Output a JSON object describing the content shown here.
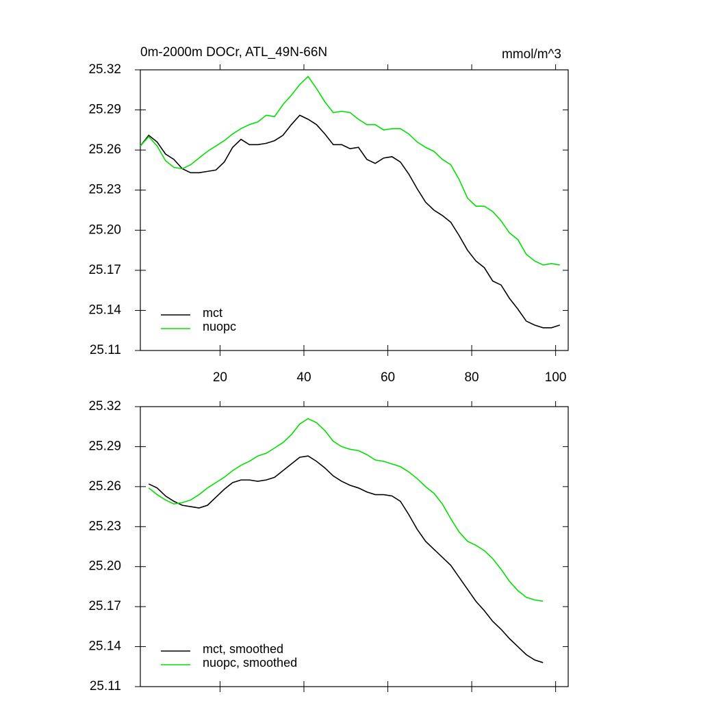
{
  "chart_data": [
    {
      "type": "line",
      "title": "0m-2000m DOCr, ATL_49N-66N",
      "units": "mmol/m^3",
      "x": [
        1,
        3,
        5,
        7,
        9,
        11,
        13,
        15,
        17,
        19,
        21,
        23,
        25,
        27,
        29,
        31,
        33,
        35,
        37,
        39,
        41,
        43,
        45,
        47,
        49,
        51,
        53,
        55,
        57,
        59,
        61,
        63,
        65,
        67,
        69,
        71,
        73,
        75,
        77,
        79,
        81,
        83,
        85,
        87,
        89,
        91,
        93,
        95,
        97,
        99,
        101
      ],
      "series": [
        {
          "name": "mct",
          "color": "#000000",
          "values": [
            25.263,
            25.271,
            25.266,
            25.257,
            25.253,
            25.246,
            25.243,
            25.243,
            25.244,
            25.245,
            25.251,
            25.262,
            25.268,
            25.264,
            25.264,
            25.265,
            25.267,
            25.271,
            25.279,
            25.286,
            25.283,
            25.279,
            25.272,
            25.264,
            25.264,
            25.261,
            25.262,
            25.253,
            25.25,
            25.254,
            25.255,
            25.251,
            25.242,
            25.231,
            25.221,
            25.215,
            25.211,
            25.206,
            25.196,
            25.185,
            25.177,
            25.172,
            25.162,
            25.159,
            25.149,
            25.141,
            25.132,
            25.129,
            25.127,
            25.127,
            25.129
          ]
        },
        {
          "name": "nuopc",
          "color": "#00e000",
          "values": [
            25.263,
            25.27,
            25.263,
            25.252,
            25.247,
            25.246,
            25.249,
            25.254,
            25.259,
            25.263,
            25.267,
            25.272,
            25.276,
            25.279,
            25.281,
            25.286,
            25.285,
            25.294,
            25.301,
            25.309,
            25.315,
            25.306,
            25.296,
            25.288,
            25.289,
            25.288,
            25.283,
            25.279,
            25.279,
            25.275,
            25.276,
            25.276,
            25.272,
            25.266,
            25.262,
            25.259,
            25.253,
            25.249,
            25.238,
            25.224,
            25.218,
            25.218,
            25.214,
            25.207,
            25.198,
            25.193,
            25.182,
            25.177,
            25.174,
            25.175,
            25.174
          ]
        }
      ],
      "xlim": [
        1,
        103
      ],
      "xticks": [
        20,
        40,
        60,
        80,
        100
      ],
      "xtick_labels": true,
      "ylim": [
        25.11,
        25.32
      ],
      "yticks": [
        25.11,
        25.14,
        25.17,
        {
          "value": 25.2,
          "label": "25.20"
        },
        25.23,
        25.26,
        25.29,
        25.32
      ],
      "legend": "lower left"
    },
    {
      "type": "line",
      "x": [
        3,
        5,
        7,
        9,
        11,
        13,
        15,
        17,
        19,
        21,
        23,
        25,
        27,
        29,
        31,
        33,
        35,
        37,
        39,
        41,
        43,
        45,
        47,
        49,
        51,
        53,
        55,
        57,
        59,
        61,
        63,
        65,
        67,
        69,
        71,
        73,
        75,
        77,
        79,
        81,
        83,
        85,
        87,
        89,
        91,
        93,
        95,
        97
      ],
      "series": [
        {
          "name": "mct, smoothed",
          "color": "#000000",
          "values": [
            25.262,
            25.259,
            25.253,
            25.249,
            25.246,
            25.245,
            25.244,
            25.246,
            25.252,
            25.258,
            25.263,
            25.265,
            25.265,
            25.264,
            25.265,
            25.267,
            25.272,
            25.277,
            25.282,
            25.283,
            25.279,
            25.274,
            25.268,
            25.264,
            25.261,
            25.259,
            25.256,
            25.254,
            25.254,
            25.253,
            25.249,
            25.239,
            25.228,
            25.219,
            25.213,
            25.207,
            25.201,
            25.192,
            25.183,
            25.174,
            25.167,
            25.159,
            25.153,
            25.146,
            25.14,
            25.134,
            25.13,
            25.128
          ]
        },
        {
          "name": "nuopc, smoothed",
          "color": "#00e000",
          "values": [
            25.259,
            25.254,
            25.25,
            25.247,
            25.248,
            25.25,
            25.254,
            25.259,
            25.263,
            25.267,
            25.272,
            25.276,
            25.279,
            25.283,
            25.285,
            25.289,
            25.293,
            25.299,
            25.307,
            25.311,
            25.308,
            25.302,
            25.294,
            25.29,
            25.288,
            25.287,
            25.284,
            25.28,
            25.279,
            25.277,
            25.275,
            25.271,
            25.266,
            25.26,
            25.255,
            25.247,
            25.236,
            25.226,
            25.219,
            25.216,
            25.212,
            25.206,
            25.198,
            25.189,
            25.182,
            25.177,
            25.175,
            25.174
          ]
        }
      ],
      "xlim": [
        1,
        103
      ],
      "xticks": [
        20,
        40,
        60,
        80,
        100
      ],
      "xtick_labels": false,
      "ylim": [
        25.11,
        25.32
      ],
      "yticks": [
        25.11,
        25.14,
        25.17,
        {
          "value": 25.2,
          "label": "25.20"
        },
        25.23,
        25.26,
        25.29,
        25.32
      ],
      "legend": "lower left"
    }
  ]
}
